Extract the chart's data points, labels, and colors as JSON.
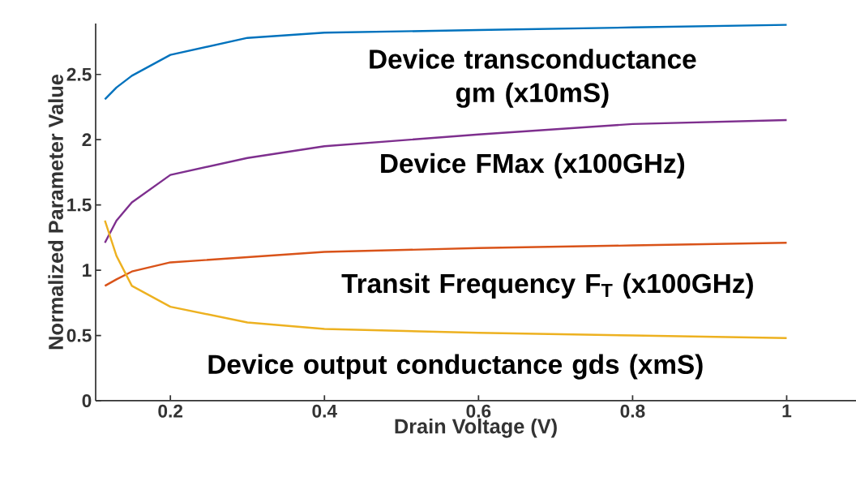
{
  "chart_data": {
    "type": "line",
    "xlabel": "Drain Voltage (V)",
    "ylabel": "Normalized Parameter Value",
    "xlim": [
      0.103,
      1.09
    ],
    "ylim": [
      0,
      2.89
    ],
    "xticks": [
      0.2,
      0.4,
      0.6,
      0.8,
      1
    ],
    "yticks": [
      0,
      0.5,
      1,
      1.5,
      2,
      2.5
    ],
    "grid": false,
    "legend": false,
    "marker": "none",
    "line_style": "solid",
    "x": [
      0.115,
      0.13,
      0.15,
      0.2,
      0.3,
      0.4,
      0.6,
      0.8,
      1.0
    ],
    "series": [
      {
        "name": "Device transconductance gm (x10mS)",
        "color": "#0072bd",
        "values": [
          2.31,
          2.4,
          2.49,
          2.65,
          2.78,
          2.82,
          2.84,
          2.86,
          2.88
        ]
      },
      {
        "name": "Device FMax (x100GHz)",
        "color": "#7e2f8e",
        "values": [
          1.21,
          1.38,
          1.52,
          1.73,
          1.86,
          1.95,
          2.04,
          2.12,
          2.15
        ]
      },
      {
        "name": "Transit Frequency F$_{T}$ (x100GHz)",
        "color": "#d95319",
        "values": [
          0.88,
          0.93,
          0.99,
          1.06,
          1.1,
          1.14,
          1.17,
          1.19,
          1.21
        ]
      },
      {
        "name": "Device output conductance gds (xmS)",
        "color": "#edb120",
        "values": [
          1.38,
          1.11,
          0.88,
          0.72,
          0.6,
          0.55,
          0.52,
          0.5,
          0.48
        ]
      }
    ]
  }
}
